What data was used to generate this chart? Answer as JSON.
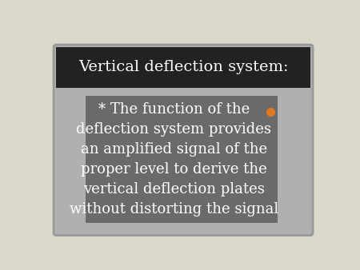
{
  "title": "Vertical deflection system:",
  "body_text": "* The function of the\ndeflection system provides\nan amplified signal of the\nproper level to derive the\nvertical deflection plates\nwithout distorting the signal",
  "outer_bg": "#ddd8cc",
  "slide_bg": "#b0b0b0",
  "slide_edge": "#aaaaaa",
  "title_bg": "#222222",
  "title_color": "#ffffff",
  "body_bg": "#6a6a6a",
  "body_color": "#ffffff",
  "bullet_color": "#e07820",
  "title_fontsize": 14,
  "body_fontsize": 13
}
